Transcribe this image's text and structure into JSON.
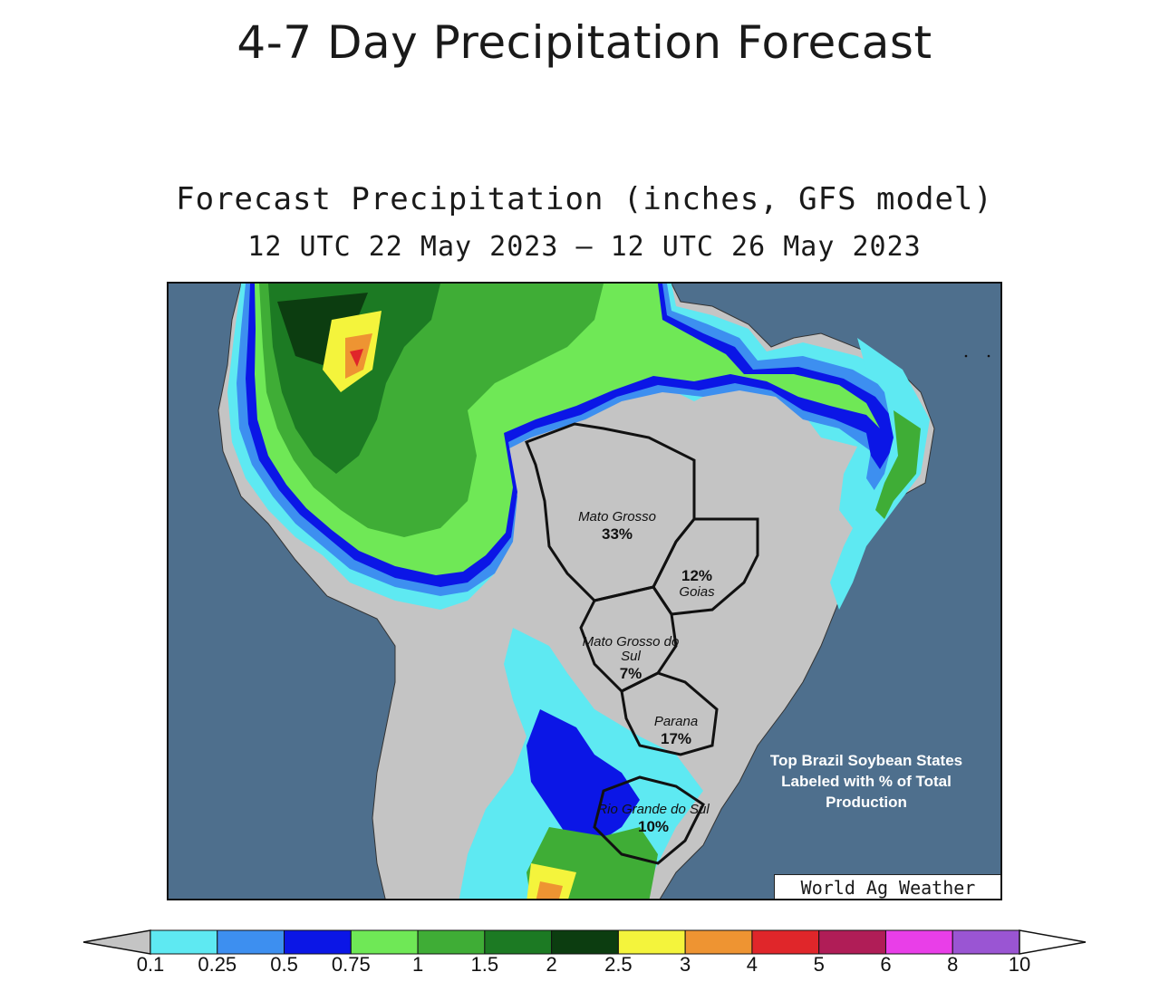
{
  "page": {
    "title": "4-7 Day Precipitation Forecast"
  },
  "map": {
    "title": "Forecast Precipitation (inches, GFS model)",
    "subtitle": "12 UTC 22 May 2023 – 12 UTC 26 May 2023",
    "ocean_color": "#4e6f8d",
    "land_color": "#c4c4c4",
    "states": [
      {
        "name": "Mato Grosso",
        "pct": "33%"
      },
      {
        "name": "Goias",
        "pct": "12%"
      },
      {
        "name": "Mato Grosso do Sul",
        "pct": "7%"
      },
      {
        "name": "Parana",
        "pct": "17%"
      },
      {
        "name": "Rio Grande do Sul",
        "pct": "10%"
      }
    ],
    "note": "Top Brazil Soybean States Labeled with % of Total Production",
    "credit": "World Ag Weather"
  },
  "legend": {
    "unit": "inches",
    "ticks": [
      "0.1",
      "0.25",
      "0.5",
      "0.75",
      "1",
      "1.5",
      "2",
      "2.5",
      "3",
      "4",
      "5",
      "6",
      "8",
      "10"
    ],
    "colors": [
      "#5ee9f2",
      "#3d8ff0",
      "#0b16e6",
      "#6fe856",
      "#3fad36",
      "#1c7a23",
      "#0c3d10",
      "#f4f43c",
      "#ee9432",
      "#e0262a",
      "#b01d57",
      "#e93ee8",
      "#9a55d3"
    ],
    "under_color": "#c4c4c4",
    "over_color": "#ffffff"
  }
}
